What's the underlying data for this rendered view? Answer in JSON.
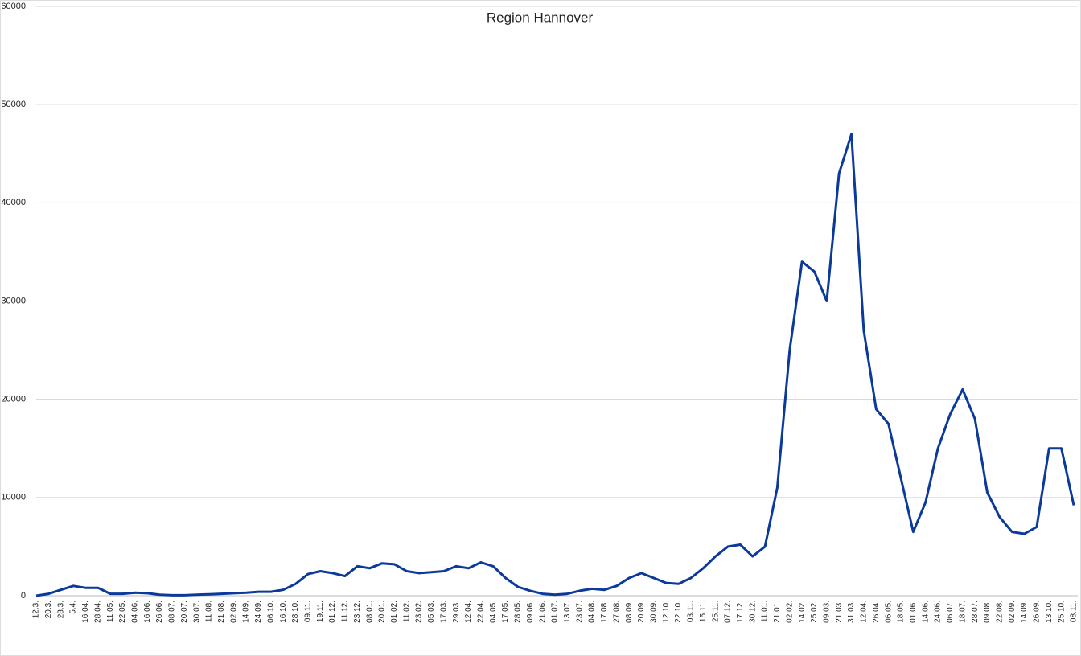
{
  "chart_data": {
    "type": "line",
    "title": "Region Hannover",
    "categories": [
      "12.3.",
      "20.3.",
      "28.3.",
      "5.4.",
      "16.04.",
      "28.04.",
      "11.05.",
      "22.05.",
      "04.06.",
      "16.06.",
      "26.06.",
      "08.07.",
      "20.07.",
      "30.07.",
      "11.08.",
      "21.08.",
      "02.09.",
      "14.09.",
      "24.09.",
      "06.10.",
      "16.10.",
      "28.10.",
      "09.11.",
      "19.11.",
      "01.12.",
      "11.12.",
      "23.12.",
      "08.01.",
      "20.01.",
      "01.02.",
      "11.02.",
      "23.02.",
      "05.03.",
      "17.03.",
      "29.03.",
      "12.04.",
      "22.04.",
      "04.05.",
      "17.05.",
      "28.05.",
      "09.06.",
      "21.06.",
      "01.07.",
      "13.07.",
      "23.07.",
      "04.08.",
      "17.08.",
      "27.08.",
      "08.09.",
      "20.09.",
      "30.09.",
      "12.10.",
      "22.10.",
      "03.11.",
      "15.11.",
      "25.11.",
      "07.12.",
      "17.12.",
      "30.12.",
      "11.01.",
      "21.01.",
      "02.02.",
      "14.02.",
      "25.02.",
      "09.03.",
      "21.03.",
      "31.03.",
      "12.04.",
      "26.04.",
      "06.05.",
      "18.05.",
      "01.06.",
      "14.06.",
      "24.06.",
      "06.07.",
      "18.07.",
      "28.07.",
      "09.08.",
      "22.08.",
      "02.09.",
      "14.09.",
      "26.09.",
      "13.10.",
      "25.10.",
      "08.11."
    ],
    "values": [
      0,
      200,
      600,
      1000,
      800,
      800,
      200,
      200,
      300,
      250,
      100,
      50,
      50,
      100,
      150,
      200,
      250,
      300,
      400,
      400,
      600,
      1200,
      2200,
      2500,
      2300,
      2000,
      3000,
      2800,
      3300,
      3200,
      2500,
      2300,
      2400,
      2500,
      3000,
      2800,
      3400,
      3000,
      1800,
      900,
      500,
      200,
      100,
      200,
      500,
      700,
      600,
      1000,
      1800,
      2300,
      1800,
      1300,
      1200,
      1800,
      2800,
      4000,
      5000,
      5200,
      4000,
      5000,
      11000,
      25000,
      34000,
      33000,
      30000,
      43000,
      47000,
      27000,
      19000,
      17500,
      12000,
      6500,
      9500,
      15000,
      18500,
      21000,
      18000,
      10500,
      8000,
      6500,
      6300,
      7000,
      15000,
      15000,
      9200
    ],
    "color": "#0b3a9a",
    "ylim": [
      0,
      60000
    ],
    "yticks": [
      0,
      10000,
      20000,
      30000,
      40000,
      50000,
      60000
    ],
    "grid": true
  }
}
